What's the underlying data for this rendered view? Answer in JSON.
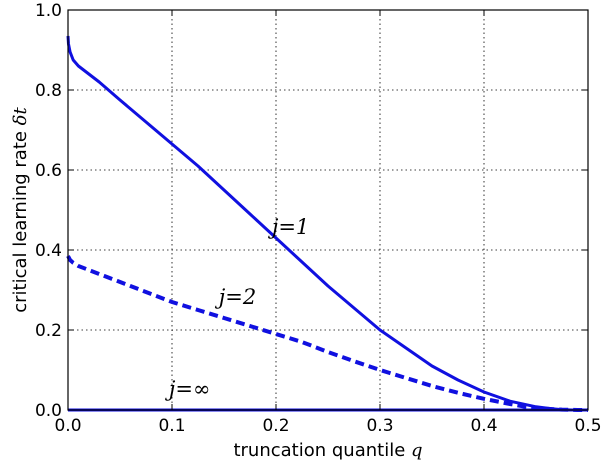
{
  "chart_data": {
    "type": "line",
    "xlabel_text": "truncation quantile ",
    "xlabel_symbol": "q",
    "ylabel_text": "critical learning rate ",
    "ylabel_symbol": "δt",
    "xlim": [
      0.0,
      0.5
    ],
    "ylim": [
      0.0,
      1.0
    ],
    "xticks": [
      "0.0",
      "0.1",
      "0.2",
      "0.3",
      "0.4",
      "0.5"
    ],
    "yticks": [
      "0.0",
      "0.2",
      "0.4",
      "0.6",
      "0.8",
      "1.0"
    ],
    "grid": true,
    "color": "#1010e0",
    "series": [
      {
        "name": "j=1",
        "style": "solid",
        "x": [
          0.0,
          0.0005,
          0.002,
          0.005,
          0.01,
          0.02,
          0.03,
          0.05,
          0.075,
          0.1,
          0.125,
          0.15,
          0.175,
          0.2,
          0.225,
          0.25,
          0.275,
          0.3,
          0.325,
          0.35,
          0.375,
          0.4,
          0.425,
          0.45,
          0.465,
          0.475,
          0.485,
          0.49,
          0.5
        ],
        "y": [
          0.935,
          0.915,
          0.895,
          0.875,
          0.86,
          0.84,
          0.82,
          0.775,
          0.72,
          0.665,
          0.61,
          0.55,
          0.49,
          0.43,
          0.37,
          0.31,
          0.255,
          0.2,
          0.155,
          0.11,
          0.075,
          0.045,
          0.022,
          0.008,
          0.003,
          0.001,
          0.0,
          0.0,
          0.0
        ]
      },
      {
        "name": "j=2",
        "style": "dashed",
        "x": [
          0.0,
          0.002,
          0.005,
          0.01,
          0.02,
          0.04,
          0.06,
          0.08,
          0.1,
          0.125,
          0.15,
          0.175,
          0.2,
          0.225,
          0.25,
          0.275,
          0.3,
          0.325,
          0.35,
          0.375,
          0.4,
          0.425,
          0.44,
          0.46,
          0.475,
          0.49,
          0.5
        ],
        "y": [
          0.385,
          0.375,
          0.368,
          0.36,
          0.35,
          0.33,
          0.31,
          0.29,
          0.27,
          0.25,
          0.23,
          0.21,
          0.19,
          0.17,
          0.145,
          0.122,
          0.1,
          0.08,
          0.06,
          0.043,
          0.028,
          0.015,
          0.008,
          0.003,
          0.001,
          0.0,
          0.0
        ]
      },
      {
        "name": "j=∞",
        "style": "solid",
        "x": [
          0.0,
          0.5
        ],
        "y": [
          0.0,
          0.0
        ]
      }
    ],
    "annotations": [
      {
        "text": "j=1",
        "x": 0.196,
        "y": 0.44
      },
      {
        "text": "j=2",
        "x": 0.145,
        "y": 0.265
      },
      {
        "text": "j=∞",
        "x": 0.097,
        "y": 0.035
      }
    ]
  }
}
